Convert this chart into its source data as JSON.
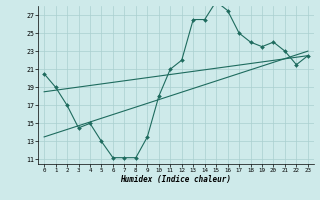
{
  "xlabel": "Humidex (Indice chaleur)",
  "background_color": "#ceeaea",
  "grid_color": "#aacfcf",
  "line_color": "#1e6b5e",
  "xlim": [
    -0.5,
    23.5
  ],
  "ylim": [
    10.5,
    28.0
  ],
  "yticks": [
    11,
    13,
    15,
    17,
    19,
    21,
    23,
    25,
    27
  ],
  "xticks": [
    0,
    1,
    2,
    3,
    4,
    5,
    6,
    7,
    8,
    9,
    10,
    11,
    12,
    13,
    14,
    15,
    16,
    17,
    18,
    19,
    20,
    21,
    22,
    23
  ],
  "line1_x": [
    0,
    1,
    2,
    3,
    4,
    5,
    6,
    7,
    8,
    9,
    10,
    11,
    12,
    13,
    14,
    15,
    16,
    17,
    18,
    19,
    20,
    21,
    22,
    23
  ],
  "line1_y": [
    20.5,
    19.0,
    17.0,
    14.5,
    15.0,
    13.0,
    11.2,
    11.2,
    11.2,
    13.5,
    18.0,
    21.0,
    22.0,
    26.5,
    26.5,
    28.5,
    27.5,
    25.0,
    24.0,
    23.5,
    24.0,
    23.0,
    21.5,
    22.5
  ],
  "line2_x": [
    0,
    23
  ],
  "line2_y": [
    13.5,
    23.0
  ],
  "line3_x": [
    0,
    23
  ],
  "line3_y": [
    18.5,
    22.5
  ]
}
